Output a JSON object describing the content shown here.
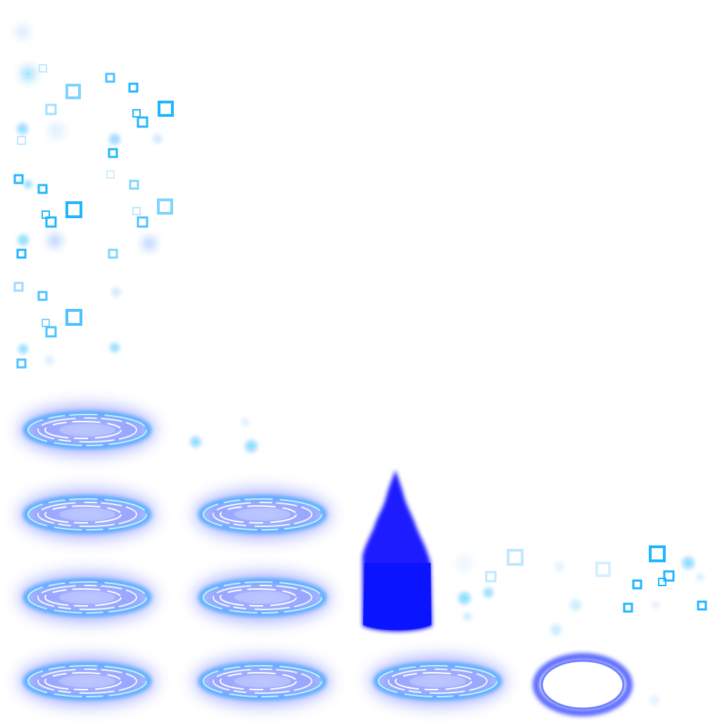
{
  "sheet": {
    "background": "#ffffff",
    "accent_cyan": "#1fb6ff",
    "accent_blue": "#1a1aff",
    "glow_blue": "#3b6dff",
    "icons": {
      "square_particle": "square-particle-icon",
      "dot_particle": "glow-dot-icon",
      "rune_ring": "rune-ring-icon",
      "flame": "blue-flame-icon",
      "oval": "glow-oval-icon"
    },
    "ring_frames": 7,
    "particle_frames": 4
  }
}
